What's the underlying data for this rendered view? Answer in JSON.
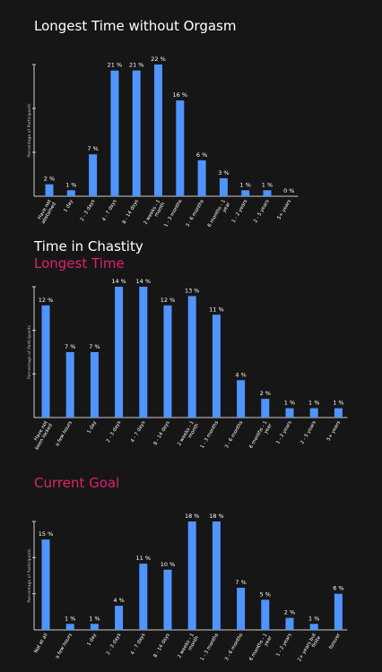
{
  "headings": {
    "chart1_title": "Longest Time without Orgasm",
    "chart2_title": "Time in Chastity",
    "chart2_subtitle": "Longest Time",
    "chart3_title": "Current Goal"
  },
  "colors": {
    "background": "#161616",
    "bar": "#4f94ff",
    "accent": "#e0216f",
    "text": "#ffffff"
  },
  "chart_data": [
    {
      "type": "bar",
      "title": "Longest Time without Orgasm",
      "ylabel": "Percentage of Participants",
      "xlabel": "",
      "ylim": [
        0,
        22
      ],
      "categories": [
        "Have not abstained",
        "1 day",
        "2 - 3 days",
        "4 - 7 days",
        "8 - 14 days",
        "2 weeks - 1 month",
        "1 - 3 months",
        "3 - 6 months",
        "6 months - 1 year",
        "1 - 2 years",
        "2 - 5 years",
        "5+ years"
      ],
      "values": [
        2,
        1,
        7,
        21,
        21,
        22,
        16,
        6,
        3,
        1,
        1,
        0
      ],
      "value_labels": [
        "2 %",
        "1 %",
        "7 %",
        "21 %",
        "21 %",
        "22 %",
        "16 %",
        "6 %",
        "3 %",
        "1 %",
        "1 %",
        "0 %"
      ]
    },
    {
      "type": "bar",
      "title": "Time in Chastity",
      "subtitle": "Longest Time",
      "ylabel": "Percentage of Participants",
      "xlabel": "",
      "ylim": [
        0,
        14
      ],
      "categories": [
        "Have not been locked",
        "a few hours",
        "1 day",
        "2 - 3 days",
        "4 - 7 days",
        "8 - 14 days",
        "2 weeks - 1 month",
        "1 - 3 months",
        "3 - 6 months",
        "6 months - 1 year",
        "1 - 2 years",
        "2 - 5 years",
        "5+ years"
      ],
      "values": [
        12,
        7,
        7,
        14,
        14,
        12,
        13,
        11,
        4,
        2,
        1,
        1,
        1
      ],
      "value_labels": [
        "12 %",
        "7 %",
        "7 %",
        "14 %",
        "14 %",
        "12 %",
        "13 %",
        "11 %",
        "4 %",
        "2 %",
        "1 %",
        "1 %",
        "1 %"
      ]
    },
    {
      "type": "bar",
      "title": "Current Goal",
      "ylabel": "Percentage of Participants",
      "xlabel": "",
      "ylim": [
        0,
        18
      ],
      "categories": [
        "Not at all",
        "a few hours",
        "1 day",
        "2 - 3 days",
        "4 - 7 days",
        "8 - 14 days",
        "2 weeks - 1 month",
        "1 - 3 months",
        "3 - 6 months",
        "6 months - 1 year",
        "1 - 2 years",
        "2+ years but finite length",
        "forever"
      ],
      "values": [
        15,
        1,
        1,
        4,
        11,
        10,
        18,
        18,
        7,
        5,
        2,
        1,
        6
      ],
      "value_labels": [
        "15 %",
        "1 %",
        "1 %",
        "4 %",
        "11 %",
        "10 %",
        "18 %",
        "18 %",
        "7 %",
        "5 %",
        "2 %",
        "1 %",
        "6 %"
      ]
    }
  ]
}
